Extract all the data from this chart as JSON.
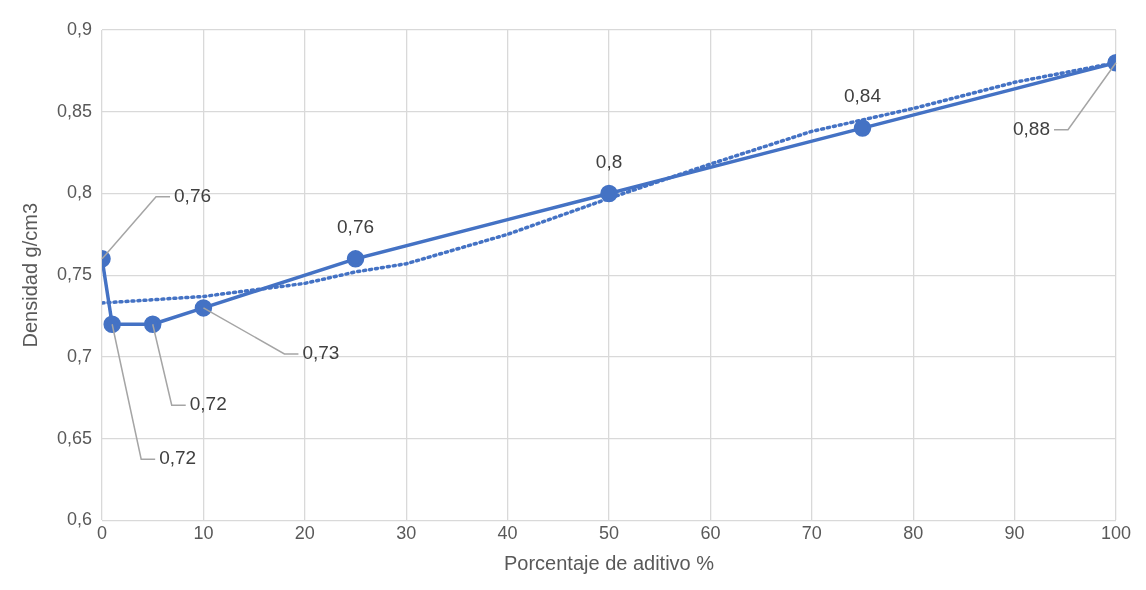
{
  "chart_data": {
    "type": "line",
    "xlabel": "Porcentaje de aditivo %",
    "ylabel": "Densidad g/cm3",
    "x": [
      0,
      1,
      5,
      10,
      25,
      50,
      75,
      100
    ],
    "series": [
      {
        "color": "#4472c4",
        "values": [
          0.76,
          0.72,
          0.72,
          0.73,
          0.76,
          0.8,
          0.84,
          0.88
        ],
        "value_labels": [
          "0,76",
          "0,72",
          "0,72",
          "0,73",
          "0,76",
          "0,8",
          "0,84",
          "0,88"
        ],
        "marker": "circle",
        "line_style": "solid"
      },
      {
        "type": "line",
        "color": "#4472c4",
        "x": [
          0,
          10,
          20,
          25,
          30,
          40,
          50,
          60,
          70,
          75,
          80,
          90,
          100
        ],
        "values": [
          0.733,
          0.737,
          0.745,
          0.752,
          0.757,
          0.775,
          0.797,
          0.818,
          0.838,
          0.845,
          0.852,
          0.868,
          0.88
        ],
        "marker": "none",
        "line_style": "dotted"
      }
    ],
    "xlim": [
      0,
      100
    ],
    "xticks": [
      0,
      10,
      20,
      30,
      40,
      50,
      60,
      70,
      80,
      90,
      100
    ],
    "ylim": [
      0.6,
      0.9
    ],
    "yticks": [
      {
        "value": 0.6,
        "label": "0,6"
      },
      {
        "value": 0.65,
        "label": "0,65"
      },
      {
        "value": 0.7,
        "label": "0,7"
      },
      {
        "value": 0.75,
        "label": "0,75"
      },
      {
        "value": 0.8,
        "label": "0,8"
      },
      {
        "value": 0.85,
        "label": "0,85"
      },
      {
        "value": 0.9,
        "label": "0,9"
      }
    ],
    "grid": true,
    "legend": false
  }
}
